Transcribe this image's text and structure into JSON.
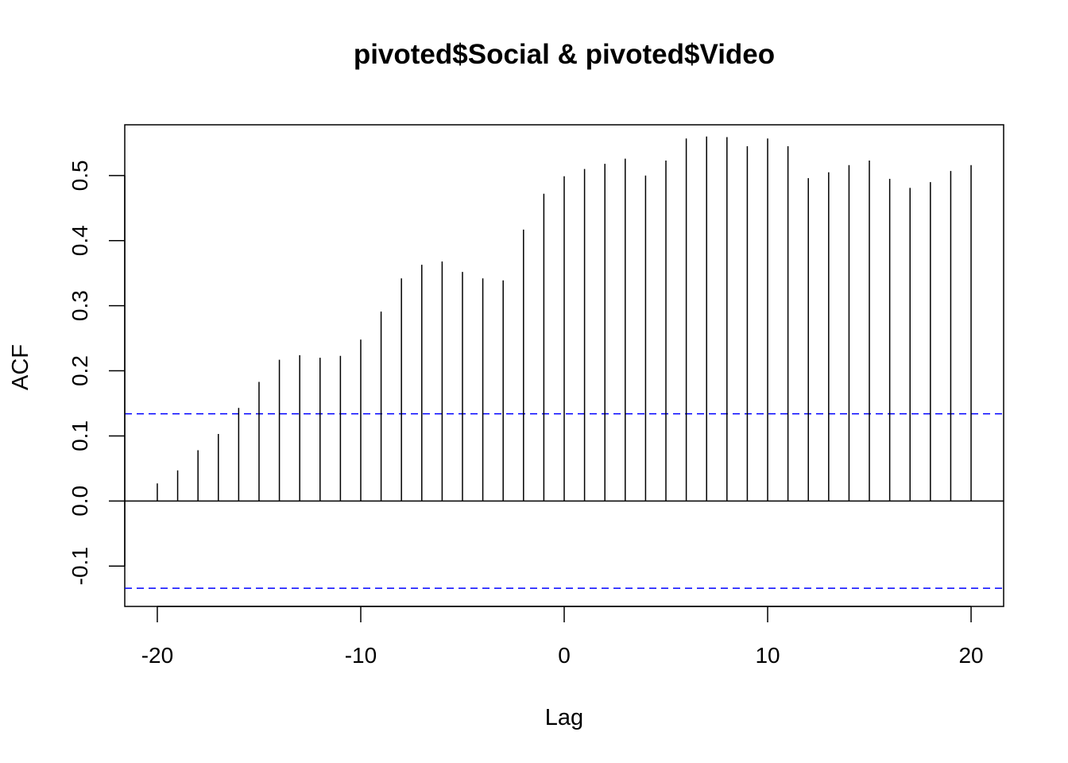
{
  "chart_data": {
    "type": "bar",
    "title": "pivoted$Social & pivoted$Video",
    "xlabel": "Lag",
    "ylabel": "ACF",
    "xlim": [
      -21.6,
      21.6
    ],
    "ylim": [
      -0.162,
      0.578
    ],
    "x_ticks": [
      -20,
      -10,
      0,
      10,
      20
    ],
    "y_ticks": [
      -0.1,
      0.0,
      0.1,
      0.2,
      0.3,
      0.4,
      0.5
    ],
    "x_tick_labels": [
      "-20",
      "-10",
      "0",
      "10",
      "20"
    ],
    "y_tick_labels": [
      "-0.1",
      "0.0",
      "0.1",
      "0.2",
      "0.3",
      "0.4",
      "0.5"
    ],
    "lags": [
      -20,
      -19,
      -18,
      -17,
      -16,
      -15,
      -14,
      -13,
      -12,
      -11,
      -10,
      -9,
      -8,
      -7,
      -6,
      -5,
      -4,
      -3,
      -2,
      -1,
      0,
      1,
      2,
      3,
      4,
      5,
      6,
      7,
      8,
      9,
      10,
      11,
      12,
      13,
      14,
      15,
      16,
      17,
      18,
      19,
      20
    ],
    "values": [
      0.027,
      0.047,
      0.078,
      0.103,
      0.143,
      0.183,
      0.217,
      0.224,
      0.22,
      0.223,
      0.248,
      0.291,
      0.342,
      0.363,
      0.368,
      0.352,
      0.342,
      0.339,
      0.417,
      0.472,
      0.499,
      0.51,
      0.518,
      0.526,
      0.5,
      0.523,
      0.557,
      0.56,
      0.559,
      0.545,
      0.557,
      0.545,
      0.496,
      0.505,
      0.516,
      0.523,
      0.495,
      0.481,
      0.49,
      0.507,
      0.516
    ],
    "confidence_bound": 0.134,
    "bar_color": "#000000",
    "ci_color": "#0000ff",
    "grid": false,
    "legend": "none"
  }
}
